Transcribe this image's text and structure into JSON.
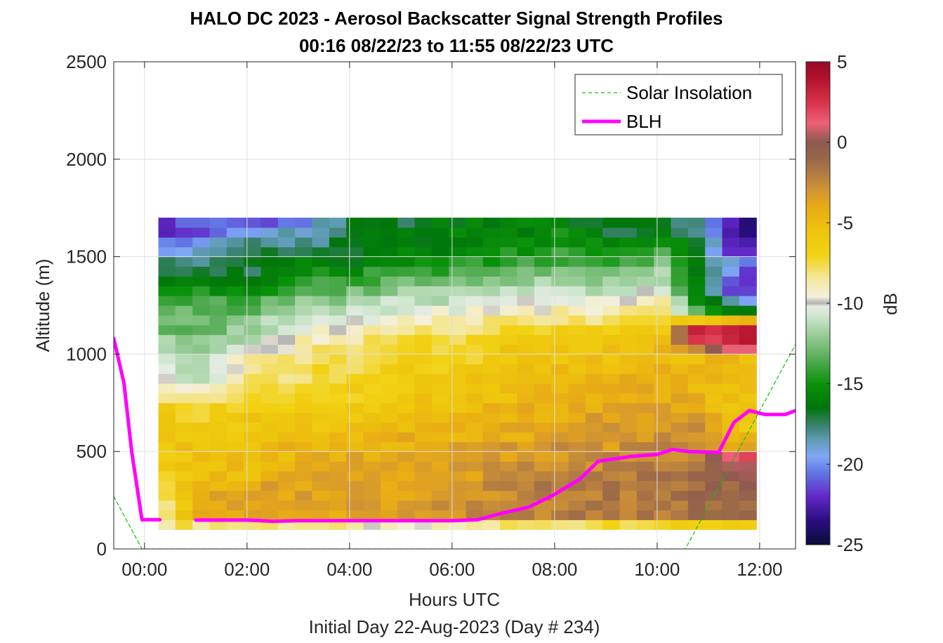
{
  "chart_data": {
    "type": "heatmap",
    "title": "HALO DC 2023 - Aerosol Backscatter Signal Strength Profiles",
    "subtitle": "00:16 08/22/23 to 11:55 08/22/23  UTC",
    "xlabel": "Hours UTC",
    "xlabel2": "Initial Day 22-Aug-2023 (Day # 234)",
    "ylabel": "Altitude (m)",
    "colorbar_label": "dB",
    "xlim": [
      -0.6,
      12.7
    ],
    "ylim": [
      0,
      2500
    ],
    "clim": [
      -25,
      5
    ],
    "x_ticks": [
      {
        "v": 0,
        "label": "00:00"
      },
      {
        "v": 2,
        "label": "02:00"
      },
      {
        "v": 4,
        "label": "04:00"
      },
      {
        "v": 6,
        "label": "06:00"
      },
      {
        "v": 8,
        "label": "08:00"
      },
      {
        "v": 10,
        "label": "10:00"
      },
      {
        "v": 12,
        "label": "12:00"
      }
    ],
    "y_ticks": [
      {
        "v": 0,
        "label": "0"
      },
      {
        "v": 500,
        "label": "500"
      },
      {
        "v": 1000,
        "label": "1000"
      },
      {
        "v": 1500,
        "label": "1500"
      },
      {
        "v": 2000,
        "label": "2000"
      },
      {
        "v": 2500,
        "label": "2500"
      }
    ],
    "c_ticks": [
      {
        "v": 5,
        "label": "5"
      },
      {
        "v": 0,
        "label": "0"
      },
      {
        "v": -5,
        "label": "-5"
      },
      {
        "v": -10,
        "label": "-10"
      },
      {
        "v": -15,
        "label": "-15"
      },
      {
        "v": -20,
        "label": "-20"
      },
      {
        "v": -25,
        "label": "-25"
      }
    ],
    "grid": true,
    "legend_position": "top-right",
    "heatmap": {
      "x_start": 0.27,
      "x_step": 0.3333,
      "y_start": 100,
      "y_step": 50,
      "columns": [
        {
          "x": 0.44,
          "values": [
            -8,
            -7.5,
            -7.5,
            -7,
            -7,
            -6.5,
            -6.5,
            -6,
            -6,
            -6,
            -6,
            -6,
            -6,
            -8,
            -9,
            -10,
            -11,
            -11,
            -12,
            -12,
            -13,
            -13,
            -13,
            -14,
            -15,
            -16,
            -17,
            -18,
            -20,
            -21,
            -22,
            -22
          ]
        },
        {
          "x": 1.1,
          "values": [
            -8,
            -4,
            -4,
            -4,
            -4.5,
            -5,
            -5,
            -5.5,
            -5.5,
            -6,
            -6.5,
            -7,
            -7.5,
            -9,
            -10,
            -11,
            -11.5,
            -12,
            -12,
            -12.5,
            -13,
            -13,
            -13.5,
            -14,
            -15,
            -16,
            -17,
            -18,
            -19,
            -20,
            -21,
            -21
          ]
        },
        {
          "x": 2.1,
          "values": [
            -8,
            -4,
            -4,
            -4,
            -4,
            -5,
            -5,
            -5,
            -5,
            -5.5,
            -6,
            -6,
            -6.5,
            -7,
            -7.5,
            -8,
            -8.5,
            -9,
            -10,
            -11,
            -11.5,
            -12,
            -13,
            -14,
            -15,
            -16,
            -17,
            -17,
            -17,
            -18,
            -19,
            -21
          ]
        },
        {
          "x": 3.1,
          "values": [
            -8,
            -4,
            -3.5,
            -3.5,
            -3.5,
            -4,
            -4,
            -4.5,
            -4.5,
            -5,
            -5.5,
            -6,
            -6,
            -6.5,
            -7,
            -7.5,
            -7.5,
            -8,
            -8.5,
            -9,
            -10,
            -11,
            -11,
            -12,
            -13,
            -14,
            -15,
            -16,
            -17,
            -18,
            -19,
            -20
          ]
        },
        {
          "x": 4.1,
          "values": [
            -9,
            -3.5,
            -3.5,
            -3.5,
            -3.5,
            -4,
            -4,
            -4,
            -4.5,
            -5,
            -5.5,
            -6,
            -6,
            -6.5,
            -6.5,
            -7,
            -7.5,
            -8,
            -8,
            -8.5,
            -9,
            -10,
            -11,
            -12,
            -13,
            -14,
            -15,
            -16,
            -17,
            -17,
            -17,
            -17
          ]
        },
        {
          "x": 5.1,
          "values": [
            -10,
            -3.5,
            -3.5,
            -3.5,
            -3.5,
            -4,
            -4,
            -4,
            -4.5,
            -4.5,
            -5,
            -5.5,
            -5.5,
            -6,
            -6,
            -6.5,
            -6.5,
            -7,
            -7,
            -7.5,
            -8,
            -9,
            -10,
            -11,
            -12,
            -13,
            -14,
            -15,
            -16,
            -16,
            -16,
            -17
          ]
        },
        {
          "x": 6.1,
          "values": [
            -9,
            -3,
            -3,
            -3,
            -3,
            -3.5,
            -3.5,
            -4,
            -4,
            -4.5,
            -4.5,
            -5,
            -5,
            -5.5,
            -5.5,
            -6,
            -6.5,
            -7,
            -7,
            -7.5,
            -8,
            -9,
            -10,
            -11,
            -12,
            -13,
            -14,
            -15,
            -16,
            -16,
            -16,
            -16
          ]
        },
        {
          "x": 7.1,
          "values": [
            -8,
            -2.5,
            -2.5,
            -2.5,
            -2.5,
            -3,
            -3,
            -3.5,
            -3.5,
            -4,
            -4,
            -4.5,
            -4.5,
            -5,
            -5,
            -5.5,
            -5.5,
            -6,
            -6,
            -6.5,
            -7,
            -8,
            -9,
            -10,
            -11,
            -12,
            -13,
            -14,
            -15,
            -15,
            -16,
            -16
          ]
        },
        {
          "x": 8.1,
          "values": [
            -8,
            -2,
            -2,
            -2,
            -2,
            -2.5,
            -2.5,
            -3,
            -3,
            -3.5,
            -3.5,
            -4,
            -4,
            -4.5,
            -4.5,
            -5,
            -5,
            -5.5,
            -6,
            -6.5,
            -7,
            -8,
            -9,
            -10,
            -11,
            -12,
            -13,
            -14,
            -14,
            -15,
            -15,
            -16
          ]
        },
        {
          "x": 9.1,
          "values": [
            -7,
            -2,
            -2,
            -2,
            -2,
            -2,
            -2.5,
            -2.5,
            -3,
            -3,
            -3.5,
            -3.5,
            -4,
            -4,
            -4,
            -4.5,
            -5,
            -5,
            -5.5,
            -6,
            -7,
            -8,
            -9,
            -10,
            -11,
            -12,
            -13,
            -14,
            -15,
            -16,
            -17,
            -17
          ]
        },
        {
          "x": 10.1,
          "values": [
            -7,
            -2,
            -2,
            -2,
            -2,
            -2,
            -2,
            -2.5,
            -2.5,
            -3,
            -3,
            -3.5,
            -3.5,
            -4,
            -4,
            -4.5,
            -4.5,
            -5,
            -5,
            -5.5,
            -6,
            -7,
            -8,
            -9,
            -10,
            -11,
            -12,
            -13,
            -14,
            -15,
            -16,
            -17
          ]
        },
        {
          "x": 10.8,
          "values": [
            -7,
            -1,
            -1,
            -1,
            -1.5,
            -1.5,
            -2,
            -2,
            -2.5,
            -3,
            -3,
            -3.5,
            -4,
            -4,
            -4.5,
            -4.5,
            -5,
            -5,
            -2,
            2,
            3,
            -6,
            -14,
            -15,
            -16,
            -16,
            -16,
            -17,
            -17,
            -17,
            -18,
            -18
          ]
        },
        {
          "x": 11.55,
          "values": [
            -6,
            -1,
            -1,
            -0.5,
            -0.5,
            0,
            1,
            2,
            -4,
            -5,
            -6,
            -6,
            -6,
            -5.5,
            -5.5,
            -5,
            -5,
            -5,
            1,
            3,
            4,
            -5,
            -16,
            -19,
            -22,
            -22,
            -21,
            -20,
            -22,
            -23,
            -24,
            -23
          ]
        }
      ]
    },
    "series": [
      {
        "name": "Solar Insolation",
        "style": "dashed",
        "color": "#00c800",
        "x": [
          -0.6,
          -0.05,
          10.55,
          12.7
        ],
        "y": [
          270,
          0,
          0,
          1050
        ]
      },
      {
        "name": "BLH",
        "style": "solid",
        "color": "#ff00ff",
        "x": [
          -0.6,
          -0.4,
          -0.25,
          -0.05,
          0.3,
          0.6,
          1.0,
          2.0,
          2.5,
          3.0,
          4.0,
          5.0,
          6.0,
          6.5,
          7.0,
          7.5,
          8.0,
          8.5,
          8.85,
          9.5,
          10.0,
          10.3,
          10.6,
          11.2,
          11.5,
          11.8,
          12.1,
          12.5,
          12.7
        ],
        "y": [
          1080,
          850,
          500,
          150,
          150,
          null,
          148,
          148,
          142,
          145,
          145,
          145,
          145,
          150,
          185,
          215,
          280,
          360,
          450,
          475,
          485,
          510,
          500,
          495,
          650,
          710,
          690,
          690,
          710
        ]
      }
    ]
  }
}
